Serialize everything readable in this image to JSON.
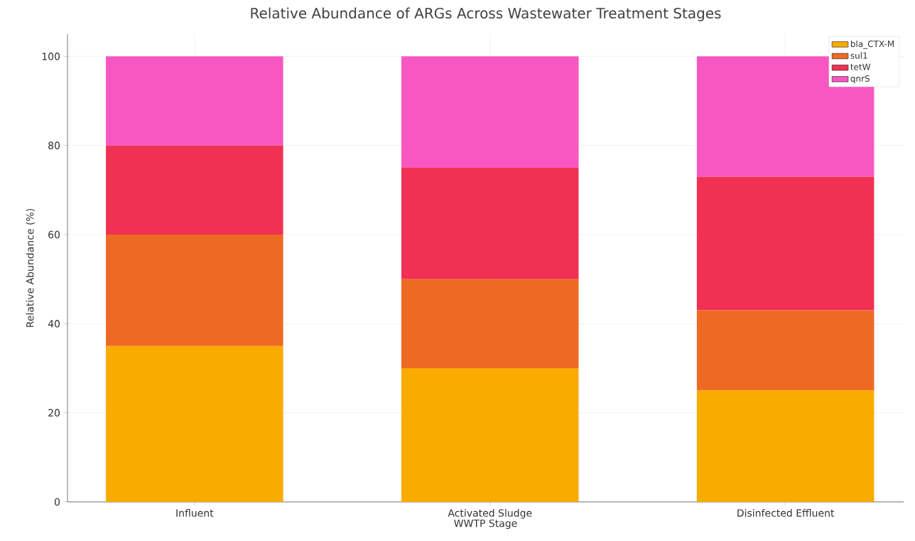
{
  "chart_data": {
    "type": "bar",
    "stacked": true,
    "title": "Relative Abundance of ARGs Across Wastewater Treatment Stages",
    "xlabel": "WWTP Stage",
    "ylabel": "Relative Abundance (%)",
    "categories": [
      "Influent",
      "Activated Sludge",
      "Disinfected Effluent"
    ],
    "series": [
      {
        "name": "bla_CTX-M",
        "color": "#f9ab00",
        "values": [
          35,
          30,
          25
        ]
      },
      {
        "name": "sul1",
        "color": "#ee6a24",
        "values": [
          25,
          20,
          18
        ]
      },
      {
        "name": "tetW",
        "color": "#f03153",
        "values": [
          20,
          25,
          30
        ]
      },
      {
        "name": "qnrS",
        "color": "#f857c2",
        "values": [
          20,
          25,
          27
        ]
      }
    ],
    "ylim": [
      0,
      105
    ],
    "yticks": [
      0,
      20,
      40,
      60,
      80,
      100
    ],
    "grid": true,
    "legend": "top right"
  }
}
